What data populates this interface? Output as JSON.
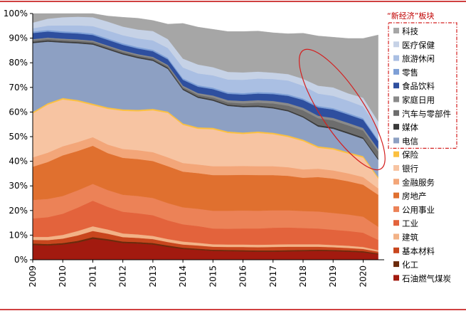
{
  "chart_data": {
    "type": "area",
    "stacked": true,
    "x": [
      2009.0,
      2009.5,
      2010.0,
      2010.5,
      2011.0,
      2011.5,
      2012.0,
      2012.5,
      2013.0,
      2013.5,
      2014.0,
      2014.5,
      2015.0,
      2015.5,
      2016.0,
      2016.5,
      2017.0,
      2017.5,
      2018.0,
      2018.5,
      2019.0,
      2019.5,
      2020.0,
      2020.5
    ],
    "x_ticks": [
      "2009",
      "2010",
      "2011",
      "2012",
      "2013",
      "2014",
      "2015",
      "2016",
      "2017",
      "2018",
      "2019",
      "2020"
    ],
    "y_ticks": [
      "0%",
      "10%",
      "20%",
      "30%",
      "40%",
      "50%",
      "60%",
      "70%",
      "80%",
      "90%",
      "100%"
    ],
    "ylim": [
      0,
      100
    ],
    "legend_position": "right",
    "legend_title": "“新经济”板块",
    "series": [
      {
        "name": "石油燃气煤炭",
        "color": "#a21a0f",
        "values": [
          6.0,
          5.8,
          6.2,
          7.0,
          8.5,
          7.8,
          6.8,
          6.6,
          6.2,
          5.2,
          4.4,
          4.0,
          3.6,
          3.5,
          3.4,
          3.3,
          3.3,
          3.4,
          3.5,
          3.6,
          3.5,
          3.3,
          3.0,
          2.2
        ]
      },
      {
        "name": "化工",
        "color": "#6b2a0b",
        "values": [
          0.6,
          0.6,
          0.6,
          0.7,
          0.7,
          0.6,
          0.6,
          0.6,
          0.6,
          0.6,
          0.5,
          0.5,
          0.5,
          0.5,
          0.5,
          0.5,
          0.5,
          0.5,
          0.5,
          0.5,
          0.5,
          0.5,
          0.5,
          0.4
        ]
      },
      {
        "name": "基本材料",
        "color": "#c8461d",
        "values": [
          1.5,
          1.6,
          1.8,
          2.2,
          2.5,
          2.2,
          1.8,
          1.7,
          1.6,
          1.4,
          1.3,
          1.3,
          1.2,
          1.2,
          1.3,
          1.3,
          1.4,
          1.4,
          1.3,
          1.2,
          1.1,
          1.0,
          0.9,
          0.7
        ]
      },
      {
        "name": "建筑",
        "color": "#f2b287",
        "values": [
          1.2,
          1.3,
          1.5,
          1.8,
          1.9,
          1.7,
          1.5,
          1.4,
          1.3,
          1.2,
          1.2,
          1.1,
          1.0,
          1.0,
          1.0,
          1.0,
          1.0,
          1.0,
          1.0,
          1.0,
          0.9,
          0.9,
          0.8,
          0.6
        ]
      },
      {
        "name": "工业",
        "color": "#e3633c",
        "values": [
          7.5,
          8.0,
          8.6,
          9.5,
          10.4,
          9.2,
          8.8,
          8.6,
          8.4,
          7.6,
          7.0,
          6.8,
          6.4,
          6.4,
          6.5,
          6.6,
          6.8,
          6.8,
          6.6,
          6.4,
          6.2,
          6.0,
          5.8,
          4.2
        ]
      },
      {
        "name": "公用事业",
        "color": "#ec8257",
        "values": [
          7.5,
          7.4,
          7.2,
          7.0,
          6.8,
          6.8,
          6.9,
          7.0,
          7.0,
          7.0,
          6.9,
          7.0,
          7.2,
          7.3,
          7.3,
          7.2,
          7.1,
          7.0,
          6.9,
          6.9,
          6.8,
          6.7,
          6.5,
          5.3
        ]
      },
      {
        "name": "房地产",
        "color": "#e0702f",
        "values": [
          13.5,
          15.0,
          16.5,
          16.0,
          15.5,
          15.0,
          15.0,
          15.0,
          15.0,
          15.0,
          14.5,
          14.5,
          14.5,
          14.5,
          14.5,
          14.5,
          14.3,
          14.0,
          13.5,
          14.0,
          14.0,
          13.5,
          13.0,
          13.0
        ]
      },
      {
        "name": "金融服务",
        "color": "#f3a679",
        "values": [
          3.8,
          3.8,
          3.7,
          3.6,
          3.5,
          3.5,
          3.6,
          3.6,
          3.6,
          3.6,
          3.5,
          3.5,
          3.6,
          3.6,
          3.6,
          3.6,
          3.6,
          3.5,
          3.4,
          3.4,
          3.3,
          3.2,
          3.1,
          2.6
        ]
      },
      {
        "name": "银行",
        "color": "#f7c4a2",
        "values": [
          17.8,
          19.5,
          19.0,
          16.5,
          13.0,
          14.5,
          15.5,
          15.8,
          17.0,
          18.0,
          15.5,
          14.5,
          15.0,
          13.5,
          13.0,
          13.5,
          13.0,
          12.3,
          11.5,
          8.5,
          8.5,
          8.0,
          7.9,
          4.0
        ]
      },
      {
        "name": "保险",
        "color": "#fbc040",
        "values": [
          0.6,
          0.6,
          0.6,
          0.6,
          0.6,
          0.6,
          0.6,
          0.6,
          0.6,
          0.6,
          0.6,
          0.6,
          0.6,
          0.6,
          0.6,
          0.6,
          0.6,
          0.6,
          0.6,
          0.6,
          0.6,
          0.6,
          0.6,
          0.6
        ]
      },
      {
        "name": "电信",
        "color": "#8da0c3",
        "values": [
          28.0,
          25.0,
          22.5,
          23.0,
          24.0,
          23.5,
          22.3,
          21.0,
          19.5,
          17.3,
          13.6,
          12.0,
          11.0,
          10.4,
          10.3,
          10.0,
          9.9,
          9.8,
          9.0,
          8.0,
          7.8,
          7.5,
          7.0,
          7.0
        ]
      },
      {
        "name": "媒体",
        "color": "#3a3a3a",
        "values": [
          0.5,
          0.5,
          0.5,
          0.5,
          0.5,
          0.5,
          0.5,
          0.5,
          0.5,
          0.5,
          0.5,
          0.5,
          0.5,
          0.5,
          0.5,
          0.5,
          0.5,
          0.5,
          0.5,
          0.6,
          0.6,
          0.6,
          0.6,
          0.6
        ]
      },
      {
        "name": "汽车与零部件",
        "color": "#6d6d6d",
        "values": [
          0.6,
          0.6,
          0.6,
          0.6,
          0.6,
          0.6,
          0.6,
          0.6,
          0.6,
          0.6,
          0.6,
          0.7,
          0.8,
          0.9,
          1.0,
          1.2,
          1.5,
          1.8,
          2.4,
          2.8,
          2.8,
          2.8,
          2.8,
          2.8
        ]
      },
      {
        "name": "家庭日用",
        "color": "#8a8a8a",
        "values": [
          0.5,
          0.5,
          0.5,
          0.5,
          0.5,
          0.5,
          0.5,
          0.5,
          0.5,
          0.5,
          0.6,
          0.7,
          0.8,
          0.9,
          1.0,
          1.0,
          1.0,
          1.0,
          1.0,
          1.0,
          1.0,
          1.0,
          1.0,
          1.0
        ]
      },
      {
        "name": "食品饮料",
        "color": "#2e4f9f",
        "values": [
          2.5,
          2.5,
          2.4,
          2.4,
          2.3,
          2.3,
          2.3,
          2.3,
          2.3,
          2.3,
          2.4,
          2.6,
          2.6,
          2.6,
          2.6,
          2.7,
          2.8,
          3.0,
          3.2,
          3.4,
          3.4,
          3.4,
          3.4,
          3.2
        ]
      },
      {
        "name": "零售",
        "color": "#7d9fd6",
        "values": [
          0.6,
          0.6,
          0.6,
          0.6,
          0.6,
          0.6,
          0.6,
          0.6,
          0.6,
          0.6,
          0.6,
          0.6,
          0.6,
          0.6,
          0.6,
          0.6,
          0.6,
          0.6,
          0.6,
          0.6,
          0.6,
          0.6,
          0.6,
          0.6
        ]
      },
      {
        "name": "旅游休闲",
        "color": "#aabfe3",
        "values": [
          1.3,
          1.8,
          2.4,
          2.7,
          3.0,
          3.2,
          3.3,
          3.5,
          3.8,
          4.0,
          4.4,
          4.8,
          5.0,
          5.2,
          5.4,
          5.5,
          5.5,
          5.6,
          5.2,
          5.0,
          5.0,
          5.0,
          4.8,
          4.4
        ]
      },
      {
        "name": "医疗保健",
        "color": "#c6d2e6",
        "values": [
          2.3,
          2.8,
          3.3,
          3.5,
          3.6,
          3.6,
          3.5,
          3.6,
          3.8,
          3.6,
          3.6,
          3.6,
          3.3,
          3.1,
          3.0,
          2.8,
          2.6,
          2.6,
          2.8,
          3.2,
          3.4,
          3.0,
          3.5,
          3.0
        ]
      },
      {
        "name": "科技",
        "color": "#a6a6a6",
        "values": [
          3.7,
          2.1,
          1.5,
          1.3,
          1.5,
          2.3,
          3.8,
          4.6,
          4.3,
          6.1,
          14.3,
          15.2,
          15.4,
          16.4,
          16.6,
          16.5,
          16.2,
          16.4,
          18.5,
          20.2,
          20.4,
          22.3,
          24.1,
          35.1
        ]
      }
    ],
    "legend_order": [
      "科技",
      "医疗保健",
      "旅游休闲",
      "零售",
      "食品饮料",
      "家庭日用",
      "汽车与零部件",
      "媒体",
      "电信",
      "保险",
      "银行",
      "金融服务",
      "房地产",
      "公用事业",
      "工业",
      "建筑",
      "基本材料",
      "化工",
      "石油燃气煤炭"
    ],
    "new_economy_group": [
      "科技",
      "医疗保健",
      "旅游休闲",
      "零售",
      "食品饮料",
      "家庭日用",
      "汽车与零部件",
      "媒体",
      "电信"
    ],
    "annotation": {
      "shape": "ellipse",
      "color": "#d42020"
    },
    "group_box_color": "#d42020"
  }
}
